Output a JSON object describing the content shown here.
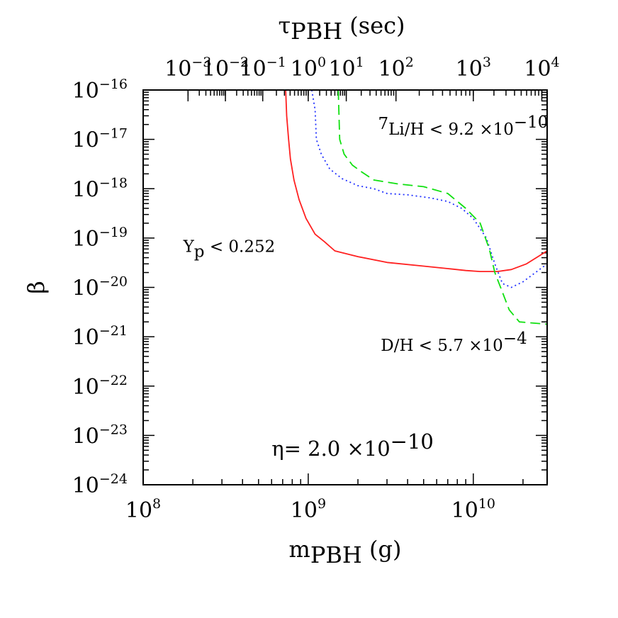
{
  "chart_data": {
    "type": "line",
    "xscale": "log",
    "yscale": "log",
    "xlim": [
      100000000.0,
      28000000000.0
    ],
    "ylim": [
      1e-24,
      1e-16
    ],
    "xlabel": {
      "main": "m",
      "sub": "PBH",
      "unit": " (g)"
    },
    "ylabel": "β",
    "top_axis": {
      "label": {
        "main": "τ",
        "sub": "PBH",
        "unit": " (sec)"
      },
      "ticks": [
        {
          "mass": 187000000.0,
          "base": "10",
          "exp": "−3"
        },
        {
          "mass": 315000000.0,
          "base": "10",
          "exp": "−2"
        },
        {
          "mass": 530000000.0,
          "base": "10",
          "exp": "−1"
        },
        {
          "mass": 1000000000.0,
          "base": "10",
          "exp": "0"
        },
        {
          "mass": 1700000000.0,
          "base": "10",
          "exp": "1"
        },
        {
          "mass": 3400000000.0,
          "base": "10",
          "exp": "2"
        },
        {
          "mass": 10000000000.0,
          "base": "10",
          "exp": "3"
        },
        {
          "mass": 26000000000.0,
          "base": "10",
          "exp": "4"
        }
      ]
    },
    "x_ticks": [
      {
        "value": 100000000.0,
        "base": "10",
        "exp": "8"
      },
      {
        "value": 1000000000.0,
        "base": "10",
        "exp": "9"
      },
      {
        "value": 10000000000.0,
        "base": "10",
        "exp": "10"
      }
    ],
    "y_ticks": [
      {
        "value": 1e-16,
        "base": "10",
        "exp": "−16"
      },
      {
        "value": 1e-17,
        "base": "10",
        "exp": "−17"
      },
      {
        "value": 1e-18,
        "base": "10",
        "exp": "−18"
      },
      {
        "value": 1e-19,
        "base": "10",
        "exp": "−19"
      },
      {
        "value": 1e-20,
        "base": "10",
        "exp": "−20"
      },
      {
        "value": 1e-21,
        "base": "10",
        "exp": "−21"
      },
      {
        "value": 1e-22,
        "base": "10",
        "exp": "−22"
      },
      {
        "value": 1e-23,
        "base": "10",
        "exp": "−23"
      },
      {
        "value": 1e-24,
        "base": "10",
        "exp": "−24"
      }
    ],
    "series": [
      {
        "color": "#ff2020",
        "dash": "solid",
        "points": [
          [
            730000000.0,
            1e-16
          ],
          [
            740000000.0,
            3e-17
          ],
          [
            760000000.0,
            1e-17
          ],
          [
            780000000.0,
            4e-18
          ],
          [
            820000000.0,
            1.5e-18
          ],
          [
            880000000.0,
            6e-19
          ],
          [
            970000000.0,
            2.5e-19
          ],
          [
            1100000000.0,
            1.2e-19
          ],
          [
            1250000000.0,
            8.5e-20
          ],
          [
            1450000000.0,
            5.5e-20
          ],
          [
            2000000000.0,
            4.2e-20
          ],
          [
            3000000000.0,
            3.2e-20
          ],
          [
            5000000000.0,
            2.7e-20
          ],
          [
            7000000000.0,
            2.4e-20
          ],
          [
            9000000000.0,
            2.2e-20
          ],
          [
            11000000000.0,
            2.1e-20
          ],
          [
            14000000000.0,
            2.1e-20
          ],
          [
            17000000000.0,
            2.3e-20
          ],
          [
            21000000000.0,
            3e-20
          ],
          [
            28000000000.0,
            5.5e-20
          ]
        ]
      },
      {
        "color": "#2030ff",
        "dash": "dotted",
        "points": [
          [
            1050000000.0,
            1e-16
          ],
          [
            1100000000.0,
            4e-17
          ],
          [
            1120000000.0,
            1e-17
          ],
          [
            1200000000.0,
            5e-18
          ],
          [
            1350000000.0,
            2.5e-18
          ],
          [
            1600000000.0,
            1.6e-18
          ],
          [
            2000000000.0,
            1.15e-18
          ],
          [
            2500000000.0,
            1e-18
          ],
          [
            3000000000.0,
            8e-19
          ],
          [
            4000000000.0,
            7.5e-19
          ],
          [
            5500000000.0,
            6.5e-19
          ],
          [
            7000000000.0,
            5.5e-19
          ],
          [
            8500000000.0,
            4e-19
          ],
          [
            10000000000.0,
            2.5e-19
          ],
          [
            12000000000.0,
            1e-19
          ],
          [
            13500000000.0,
            3e-20
          ],
          [
            15000000000.0,
            1.2e-20
          ],
          [
            17000000000.0,
            1e-20
          ],
          [
            20000000000.0,
            1.3e-20
          ],
          [
            28000000000.0,
            3e-20
          ]
        ]
      },
      {
        "color": "#10e010",
        "dash": "dashed",
        "points": [
          [
            1520000000.0,
            1e-16
          ],
          [
            1550000000.0,
            1e-17
          ],
          [
            1650000000.0,
            5e-18
          ],
          [
            1850000000.0,
            3e-18
          ],
          [
            2100000000.0,
            2.2e-18
          ],
          [
            2500000000.0,
            1.5e-18
          ],
          [
            3500000000.0,
            1.25e-18
          ],
          [
            5000000000.0,
            1.1e-18
          ],
          [
            7000000000.0,
            8e-19
          ],
          [
            9000000000.0,
            4e-19
          ],
          [
            11000000000.0,
            2e-19
          ],
          [
            12500000000.0,
            6e-20
          ],
          [
            13500000000.0,
            2e-20
          ],
          [
            15000000000.0,
            8e-21
          ],
          [
            16500000000.0,
            3.5e-21
          ],
          [
            19000000000.0,
            2e-21
          ],
          [
            28000000000.0,
            1.8e-21
          ]
        ]
      }
    ],
    "annotations": [
      {
        "key": "yp",
        "prefix": "Y",
        "sub": "p",
        "text": "  <  0.252",
        "at": [
          175000000.0,
          5.2e-20
        ]
      },
      {
        "key": "li",
        "prefix": "",
        "sup_first": "7",
        "text": "Li/H  <  9.2  ×10",
        "exp": "−10",
        "at": [
          2650000000.0,
          1.25e-17
        ]
      },
      {
        "key": "dh",
        "prefix": "",
        "text": "D/H  <  5.7  ×10",
        "exp": "−4",
        "at": [
          2750000000.0,
          5.2e-22
        ]
      },
      {
        "key": "eta",
        "text": "η=  2.0  ×10",
        "exp": "−10",
        "at": [
          600000000.0,
          3.9e-24
        ]
      }
    ]
  }
}
